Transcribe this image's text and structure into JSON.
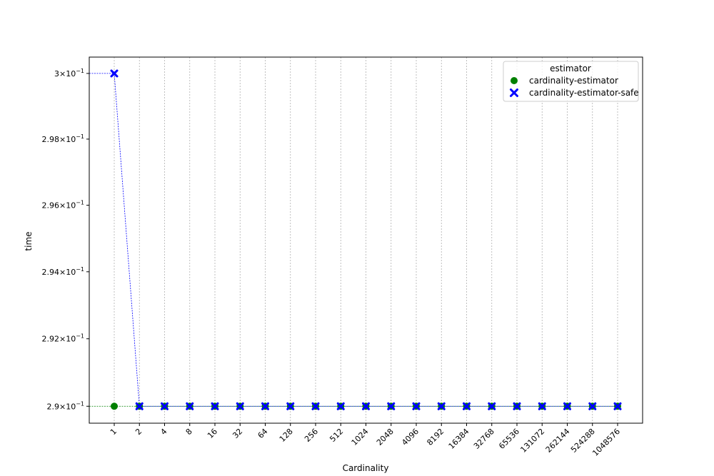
{
  "chart_data": {
    "type": "scatter",
    "xlabel": "Cardinality",
    "ylabel": "time",
    "categories": [
      "1",
      "2",
      "4",
      "8",
      "16",
      "32",
      "64",
      "128",
      "256",
      "512",
      "1024",
      "2048",
      "4096",
      "8192",
      "16384",
      "32768",
      "65536",
      "131072",
      "262144",
      "524288",
      "1048576"
    ],
    "y_scale": "log",
    "ylim": [
      0.2895,
      0.3005
    ],
    "y_ticks": [
      0.29,
      0.292,
      0.294,
      0.296,
      0.298,
      0.3
    ],
    "y_tick_labels": [
      {
        "mantissa": "2.9",
        "exp": "−1"
      },
      {
        "mantissa": "2.92",
        "exp": "−1"
      },
      {
        "mantissa": "2.94",
        "exp": "−1"
      },
      {
        "mantissa": "2.96",
        "exp": "−1"
      },
      {
        "mantissa": "2.98",
        "exp": "−1"
      },
      {
        "mantissa": "3",
        "exp": "−1"
      }
    ],
    "grid": "x-dotted",
    "legend": {
      "title": "estimator",
      "placement": "top-right"
    },
    "series": [
      {
        "name": "cardinality-estimator",
        "marker": "circle",
        "color": "#008000",
        "values": [
          0.29,
          0.29,
          0.29,
          0.29,
          0.29,
          0.29,
          0.29,
          0.29,
          0.29,
          0.29,
          0.29,
          0.29,
          0.29,
          0.29,
          0.29,
          0.29,
          0.29,
          0.29,
          0.29,
          0.29,
          0.29
        ]
      },
      {
        "name": "cardinality-estimator-safe",
        "marker": "x",
        "color": "#0000ff",
        "values": [
          0.3,
          0.29,
          0.29,
          0.29,
          0.29,
          0.29,
          0.29,
          0.29,
          0.29,
          0.29,
          0.29,
          0.29,
          0.29,
          0.29,
          0.29,
          0.29,
          0.29,
          0.29,
          0.29,
          0.29,
          0.29
        ]
      }
    ]
  }
}
